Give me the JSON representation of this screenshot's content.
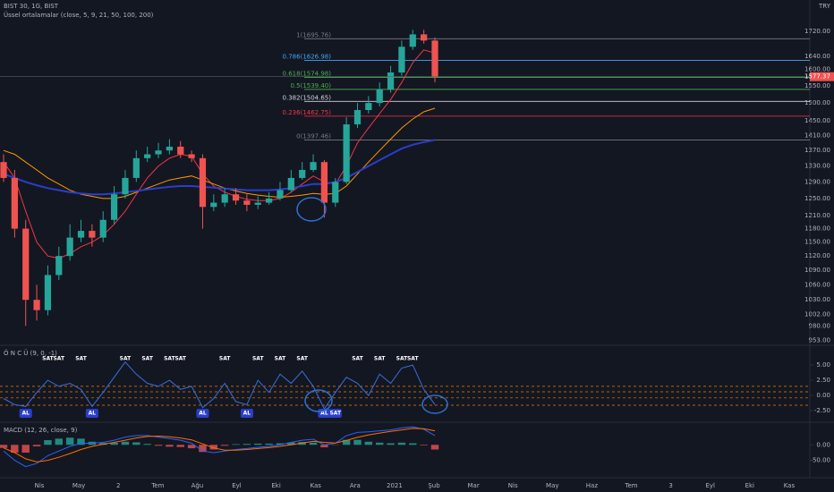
{
  "header": {
    "symbol": "BIST 30, 1G, BIST",
    "indicator": "Üssel ortalamalar (close, 5, 9, 21, 50, 100, 200)",
    "currency": "TRY"
  },
  "chart_data": [
    {
      "type": "candlestick",
      "open": [
        1340,
        1300,
        1180,
        1030,
        1010,
        1080,
        1120,
        1160,
        1175,
        1160,
        1200,
        1260,
        1300,
        1350,
        1360,
        1370,
        1380,
        1360,
        1350,
        1230,
        1240,
        1260,
        1245,
        1235,
        1240,
        1250,
        1270,
        1300,
        1320,
        1340,
        1240,
        1290,
        1440,
        1480,
        1500,
        1540,
        1590,
        1670,
        1710,
        1690
      ],
      "high": [
        1360,
        1320,
        1200,
        1060,
        1100,
        1140,
        1190,
        1200,
        1190,
        1220,
        1280,
        1320,
        1370,
        1380,
        1390,
        1400,
        1395,
        1370,
        1360,
        1260,
        1275,
        1275,
        1260,
        1255,
        1265,
        1290,
        1320,
        1340,
        1360,
        1345,
        1300,
        1460,
        1500,
        1520,
        1560,
        1610,
        1690,
        1725,
        1725,
        1700
      ],
      "low": [
        1290,
        1160,
        980,
        990,
        1000,
        1070,
        1110,
        1150,
        1140,
        1150,
        1190,
        1250,
        1290,
        1340,
        1350,
        1360,
        1350,
        1340,
        1180,
        1220,
        1230,
        1235,
        1220,
        1225,
        1235,
        1245,
        1265,
        1295,
        1315,
        1205,
        1230,
        1285,
        1430,
        1470,
        1490,
        1530,
        1580,
        1660,
        1680,
        1560
      ],
      "close": [
        1300,
        1180,
        1030,
        1010,
        1080,
        1120,
        1160,
        1175,
        1160,
        1200,
        1260,
        1300,
        1350,
        1360,
        1370,
        1380,
        1360,
        1350,
        1230,
        1240,
        1260,
        1245,
        1235,
        1240,
        1250,
        1270,
        1300,
        1320,
        1340,
        1240,
        1290,
        1440,
        1480,
        1500,
        1540,
        1590,
        1670,
        1710,
        1690,
        1577.37
      ],
      "up_color": "#26a69a",
      "down_color": "#ef5350",
      "series": [
        {
          "color": "#f23645",
          "values": [
            1340,
            1300,
            1220,
            1150,
            1120,
            1115,
            1125,
            1140,
            1150,
            1165,
            1190,
            1220,
            1260,
            1300,
            1330,
            1350,
            1360,
            1355,
            1310,
            1280,
            1265,
            1255,
            1248,
            1245,
            1245,
            1250,
            1265,
            1285,
            1305,
            1290,
            1285,
            1330,
            1390,
            1430,
            1470,
            1510,
            1560,
            1620,
            1660,
            1650
          ]
        },
        {
          "color": "#ff9800",
          "values": [
            1370,
            1360,
            1340,
            1320,
            1300,
            1285,
            1270,
            1260,
            1255,
            1250,
            1250,
            1255,
            1265,
            1275,
            1285,
            1295,
            1300,
            1305,
            1295,
            1285,
            1275,
            1268,
            1262,
            1258,
            1255,
            1253,
            1255,
            1258,
            1262,
            1260,
            1262,
            1280,
            1310,
            1340,
            1370,
            1400,
            1430,
            1455,
            1475,
            1485
          ]
        },
        {
          "color": "#2a3ec9",
          "values": [
            1310,
            1300,
            1290,
            1282,
            1275,
            1270,
            1265,
            1262,
            1260,
            1260,
            1262,
            1265,
            1268,
            1272,
            1275,
            1278,
            1280,
            1280,
            1278,
            1276,
            1274,
            1272,
            1270,
            1270,
            1270,
            1272,
            1275,
            1280,
            1285,
            1285,
            1290,
            1300,
            1315,
            1330,
            1345,
            1360,
            1375,
            1385,
            1392,
            1398
          ]
        }
      ],
      "log_scale": true,
      "ylim": [
        946,
        1826
      ],
      "yticks": [
        {
          "value": 1720,
          "label": "1720.00"
        },
        {
          "value": 1640,
          "label": "1640.00"
        },
        {
          "value": 1600,
          "label": "1600.00"
        },
        {
          "value": 1550,
          "label": "1550.00"
        },
        {
          "value": 1500,
          "label": "1500.00"
        },
        {
          "value": 1450,
          "label": "1450.00"
        },
        {
          "value": 1410,
          "label": "1410.00"
        },
        {
          "value": 1370,
          "label": "1370.00"
        },
        {
          "value": 1330,
          "label": "1330.00"
        },
        {
          "value": 1290,
          "label": "1290.00"
        },
        {
          "value": 1250,
          "label": "1250.00"
        },
        {
          "value": 1210,
          "label": "1210.00"
        },
        {
          "value": 1180,
          "label": "1180.00"
        },
        {
          "value": 1150,
          "label": "1150.00"
        },
        {
          "value": 1120,
          "label": "1120.00"
        },
        {
          "value": 1090,
          "label": "1090.00"
        },
        {
          "value": 1060,
          "label": "1060.00"
        },
        {
          "value": 1030,
          "label": "1030.00"
        },
        {
          "value": 1002,
          "label": "1002.00"
        },
        {
          "value": 980,
          "label": "980.00"
        },
        {
          "value": 953,
          "label": "953.00"
        }
      ],
      "fib_levels": [
        {
          "value": 1695.76,
          "label": "1(1695.76)"
        },
        {
          "value": 1626.98,
          "label": "0.786(1626.98)"
        },
        {
          "value": 1574.98,
          "label": "0.618(1574.98)"
        },
        {
          "value": 1539.4,
          "label": "0.5(1539.40)"
        },
        {
          "value": 1504.65,
          "label": "0.382(1504.65)"
        },
        {
          "value": 1462.75,
          "label": "0.236(1462.75)"
        },
        {
          "value": 1397.46,
          "label": "0(1397.46)"
        }
      ],
      "fib_colors": [
        "#787b86",
        "#42a5f5",
        "#4caf50",
        "#4caf50",
        "#d1d4dc",
        "#f23645",
        "#787b86"
      ],
      "xtick_labels": [
        "Nis",
        "May",
        "2",
        "Tem",
        "Ağu",
        "Eyl",
        "Eki",
        "Kas",
        "Ara",
        "2021",
        "Şub",
        "Mar",
        "Nis",
        "May",
        "Haz",
        "Tem",
        "3",
        "Eyl",
        "Eki",
        "Kas"
      ]
    },
    {
      "type": "line",
      "title": "Ö N C Ü (9, 0, -1)",
      "color": "#3b6fd8",
      "values": [
        -0.5,
        -1.5,
        -1.8,
        0.5,
        2.5,
        1.5,
        2.0,
        1.0,
        -1.8,
        0.5,
        3.0,
        5.5,
        3.5,
        2.0,
        1.5,
        2.5,
        1.0,
        1.5,
        -2.0,
        -0.5,
        2.0,
        -1.0,
        -1.5,
        2.5,
        0.5,
        3.5,
        2.0,
        4.0,
        1.5,
        -2.2,
        0.5,
        3.0,
        2.0,
        0.0,
        3.5,
        2.0,
        4.5,
        5.0,
        1.0,
        -1.5
      ],
      "signals": [
        null,
        null,
        "AL",
        null,
        "SAT",
        "SAT",
        null,
        "SAT",
        "AL",
        null,
        null,
        "SAT",
        null,
        "SAT",
        null,
        "SAT",
        "SAT",
        null,
        "AL",
        null,
        "SAT",
        null,
        "AL",
        "SAT",
        null,
        "SAT",
        null,
        "SAT",
        null,
        "AL",
        "SAT",
        null,
        "SAT",
        null,
        "SAT",
        null,
        "SAT",
        "SAT",
        null,
        null
      ],
      "levels": [
        1.5,
        0.6,
        -0.4,
        -1.6
      ],
      "level_color": "#f57c00",
      "ylim": [
        -4.1,
        8.1
      ],
      "yticks": [
        {
          "value": 5,
          "label": "5.00"
        },
        {
          "value": 2.5,
          "label": "2.50"
        },
        {
          "value": 0,
          "label": "0.00"
        },
        {
          "value": -2.5,
          "label": "-2.50"
        }
      ]
    },
    {
      "type": "macd",
      "title": "MACD (12, 26, close, 9)",
      "histogram": [
        -10,
        -25,
        -25,
        -5,
        15,
        20,
        23,
        20,
        10,
        6,
        7,
        10,
        8,
        3,
        -3,
        -6,
        -7,
        -11,
        -23,
        -15,
        -3,
        2,
        3,
        4,
        4,
        5,
        8,
        9,
        7,
        -8,
        -1,
        16,
        16,
        10,
        7,
        5,
        7,
        5,
        -2,
        -15
      ],
      "pos_color": "#26a69a",
      "neg_color": "#ef5350",
      "series": [
        {
          "color": "#2962ff",
          "values": [
            -20,
            -50,
            -70,
            -60,
            -35,
            -20,
            -5,
            5,
            5,
            8,
            15,
            25,
            30,
            30,
            25,
            20,
            15,
            5,
            -20,
            -25,
            -20,
            -15,
            -12,
            -8,
            -5,
            0,
            8,
            15,
            18,
            0,
            5,
            30,
            40,
            42,
            45,
            48,
            55,
            58,
            50,
            30
          ]
        },
        {
          "color": "#ff6d00",
          "values": [
            -10,
            -25,
            -45,
            -55,
            -50,
            -40,
            -28,
            -15,
            -5,
            2,
            8,
            15,
            22,
            27,
            28,
            26,
            22,
            16,
            3,
            -10,
            -17,
            -17,
            -15,
            -12,
            -9,
            -5,
            0,
            6,
            11,
            8,
            6,
            14,
            24,
            32,
            38,
            43,
            48,
            53,
            52,
            45
          ]
        }
      ],
      "ylim": [
        -100,
        67
      ],
      "yticks": [
        {
          "value": 0,
          "label": "0.00"
        },
        {
          "value": -50,
          "label": "-50.00"
        }
      ]
    }
  ]
}
